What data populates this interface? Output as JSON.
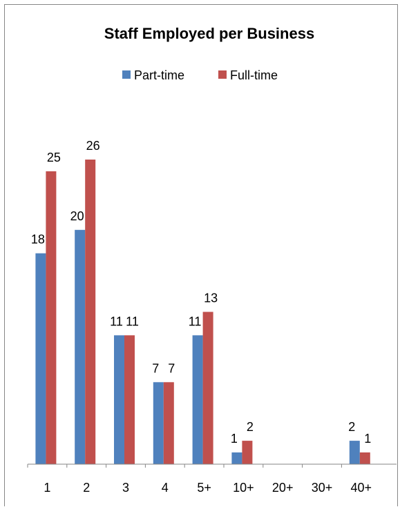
{
  "chart_data": {
    "type": "bar",
    "title": "Staff Employed per Business",
    "xlabel": "",
    "ylabel": "",
    "categories": [
      "1",
      "2",
      "3",
      "4",
      "5+",
      "10+",
      "20+",
      "30+",
      "40+"
    ],
    "series": [
      {
        "name": "Part-time",
        "values": [
          18,
          20,
          11,
          7,
          11,
          1,
          null,
          null,
          2
        ],
        "color": "#4f81bd"
      },
      {
        "name": "Full-time",
        "values": [
          25,
          26,
          11,
          7,
          13,
          2,
          null,
          null,
          1
        ],
        "color": "#c0504d"
      }
    ],
    "data_labels": [
      [
        "18",
        "20",
        "11",
        "7",
        "11",
        "1",
        "",
        "",
        "2"
      ],
      [
        "25",
        "26",
        "11",
        "7",
        "13",
        "2",
        "",
        "",
        "1"
      ]
    ],
    "ylim": [
      0,
      26
    ],
    "grid": false,
    "legend": "top"
  }
}
